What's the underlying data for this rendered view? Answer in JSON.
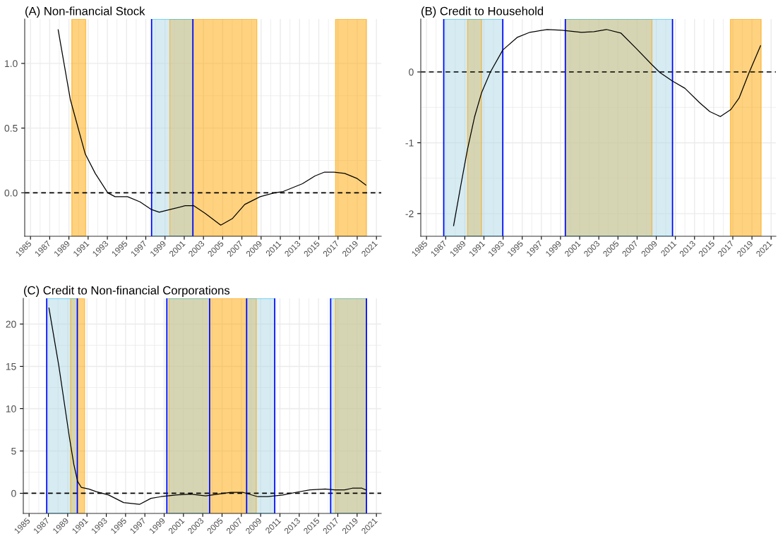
{
  "chart_data": [
    {
      "type": "line",
      "title": "(A) Non-financial Stock",
      "xlim": [
        1984.4,
        2021.5
      ],
      "ylim": [
        -0.336,
        1.343
      ],
      "xticks": [
        1985,
        1987,
        1989,
        1991,
        1993,
        1995,
        1997,
        1999,
        2001,
        2003,
        2005,
        2007,
        2009,
        2011,
        2013,
        2015,
        2017,
        2019,
        2021
      ],
      "yticks": [
        {
          "value": 0,
          "label": "0.0"
        },
        {
          "value": 0.5,
          "label": "0.5"
        },
        {
          "value": 1,
          "label": "1.0"
        }
      ],
      "grid": true,
      "line_style": "solid",
      "series": [
        {
          "color": "#000000",
          "x": [
            1987.88,
            1989.15,
            1990.7,
            1991.74,
            1993.04,
            1993.8,
            1995.1,
            1996.4,
            1997.6,
            1998.4,
            1999.5,
            2001.1,
            2002.0,
            2003.2,
            2004.8,
            2006.0,
            2007.3,
            2008.9,
            2010.4,
            2011.3,
            2013.3,
            2014.6,
            2015.6,
            2016.6,
            2017.7,
            2019.0,
            2019.9
          ],
          "values": [
            1.26,
            0.72,
            0.3,
            0.15,
            0.0,
            -0.03,
            -0.03,
            -0.07,
            -0.13,
            -0.15,
            -0.13,
            -0.1,
            -0.1,
            -0.16,
            -0.25,
            -0.2,
            -0.09,
            -0.03,
            0.0,
            0.01,
            0.07,
            0.13,
            0.16,
            0.16,
            0.15,
            0.11,
            0.06
          ]
        }
      ],
      "ref_lines": [
        {
          "axis": "y",
          "value": 0,
          "color": "#000000",
          "line_style": "dashed"
        },
        {
          "axis": "x",
          "value": 1997.6,
          "color": "#0000ff",
          "line_style": "solid"
        },
        {
          "axis": "x",
          "value": 2001.9,
          "color": "#0000ff",
          "line_style": "solid"
        }
      ],
      "bands": [
        {
          "axis": "x",
          "from": 1989.3,
          "to": 1990.75,
          "color": "#ffd280"
        },
        {
          "axis": "x",
          "from": 1999.5,
          "to": 2008.55,
          "color": "#ffd280"
        },
        {
          "axis": "x",
          "from": 2016.75,
          "to": 2019.95,
          "color": "#ffd280"
        },
        {
          "axis": "x",
          "from": 1997.6,
          "to": 2001.9,
          "color": "#d6ebf2"
        }
      ]
    },
    {
      "type": "line",
      "title": "(B) Credit to Household",
      "xlim": [
        1984.4,
        2021.5
      ],
      "ylim": [
        -2.32,
        0.747
      ],
      "xticks": [
        1985,
        1987,
        1989,
        1991,
        1993,
        1995,
        1997,
        1999,
        2001,
        2003,
        2005,
        2007,
        2009,
        2011,
        2013,
        2015,
        2017,
        2019,
        2021
      ],
      "yticks": [
        {
          "value": -2,
          "label": "-2"
        },
        {
          "value": -1,
          "label": "-1"
        },
        0
      ],
      "grid": true,
      "line_style": "solid",
      "series": [
        {
          "color": "#000000",
          "x": [
            1987.83,
            1988.6,
            1989.27,
            1990.01,
            1990.76,
            1991.68,
            1992.97,
            1994.5,
            1995.8,
            1997.6,
            1999.14,
            2001.2,
            2002.5,
            2003.8,
            2005.3,
            2006.85,
            2008.57,
            2009.4,
            2010.7,
            2011.99,
            2013.5,
            2014.6,
            2015.7,
            2016.8,
            2017.65,
            2018.7,
            2019.9
          ],
          "values": [
            -2.17,
            -1.59,
            -1.1,
            -0.64,
            -0.29,
            0,
            0.31,
            0.49,
            0.56,
            0.6,
            0.59,
            0.56,
            0.57,
            0.6,
            0.55,
            0.34,
            0.1,
            -0.01,
            -0.13,
            -0.23,
            -0.43,
            -0.56,
            -0.63,
            -0.53,
            -0.37,
            -0.01,
            0.37
          ]
        }
      ],
      "ref_lines": [
        {
          "axis": "y",
          "value": 0,
          "color": "#000000",
          "line_style": "dashed"
        },
        {
          "axis": "x",
          "value": 1986.8,
          "color": "#0000ff",
          "line_style": "solid"
        },
        {
          "axis": "x",
          "value": 1992.97,
          "color": "#0000ff",
          "line_style": "solid"
        },
        {
          "axis": "x",
          "value": 1999.5,
          "color": "#0000ff",
          "line_style": "solid"
        },
        {
          "axis": "x",
          "value": 2010.7,
          "color": "#0000ff",
          "line_style": "solid"
        }
      ],
      "bands": [
        {
          "axis": "x",
          "from": 1989.3,
          "to": 1990.75,
          "color": "#ffd280"
        },
        {
          "axis": "x",
          "from": 1999.5,
          "to": 2008.55,
          "color": "#ffd280"
        },
        {
          "axis": "x",
          "from": 2016.75,
          "to": 2019.95,
          "color": "#ffd280"
        },
        {
          "axis": "x",
          "from": 1986.8,
          "to": 1992.97,
          "color": "#d6ebf2"
        },
        {
          "axis": "x",
          "from": 1999.5,
          "to": 2010.7,
          "color": "#d6ebf2"
        }
      ]
    },
    {
      "type": "line",
      "title": "(C) Credit to Non-financial Corporations",
      "xlim": [
        1984.4,
        2021.5
      ],
      "ylim": [
        -2.38,
        23.04
      ],
      "xticks": [
        1985,
        1987,
        1989,
        1991,
        1993,
        1995,
        1997,
        1999,
        2001,
        2003,
        2005,
        2007,
        2009,
        2011,
        2013,
        2015,
        2017,
        2019,
        2021
      ],
      "yticks": [
        0,
        5,
        10,
        15,
        20
      ],
      "grid": true,
      "line_style": "solid",
      "series": [
        {
          "color": "#000000",
          "x": [
            1987.06,
            1988.09,
            1989.18,
            1989.64,
            1990.03,
            1990.41,
            1991.19,
            1991.96,
            1993.25,
            1994.8,
            1996.47,
            1997.63,
            1998.66,
            2000.2,
            2001.75,
            2003.3,
            2004.6,
            2005.9,
            2007.2,
            2008.7,
            2009.74,
            2011.3,
            2012.6,
            2014.1,
            2015.7,
            2016.7,
            2017.7,
            2018.5,
            2019.5,
            2019.9
          ],
          "values": [
            21.9,
            15.0,
            6.6,
            3.4,
            1.4,
            0.7,
            0.5,
            0.2,
            -0.2,
            -1.1,
            -1.3,
            -0.6,
            -0.4,
            -0.2,
            -0.1,
            -0.3,
            -0.1,
            0.1,
            0.1,
            -0.4,
            -0.4,
            -0.2,
            0.1,
            0.4,
            0.5,
            0.4,
            0.4,
            0.6,
            0.6,
            0.4
          ]
        }
      ],
      "ref_lines": [
        {
          "axis": "y",
          "value": 0,
          "color": "#000000",
          "line_style": "dashed"
        },
        {
          "axis": "x",
          "value": 1986.83,
          "color": "#0000ff",
          "line_style": "solid"
        },
        {
          "axis": "x",
          "value": 1990.0,
          "color": "#0000ff",
          "line_style": "solid"
        },
        {
          "axis": "x",
          "value": 1999.28,
          "color": "#0000ff",
          "line_style": "solid"
        },
        {
          "axis": "x",
          "value": 2003.71,
          "color": "#0000ff",
          "line_style": "solid"
        },
        {
          "axis": "x",
          "value": 2007.55,
          "color": "#0000ff",
          "line_style": "solid"
        },
        {
          "axis": "x",
          "value": 2010.46,
          "color": "#0000ff",
          "line_style": "solid"
        },
        {
          "axis": "x",
          "value": 2016.26,
          "color": "#0000ff",
          "line_style": "solid"
        },
        {
          "axis": "x",
          "value": 2019.97,
          "color": "#0000ff",
          "line_style": "solid"
        }
      ],
      "bands": [
        {
          "axis": "x",
          "from": 1989.3,
          "to": 1990.75,
          "color": "#ffd280"
        },
        {
          "axis": "x",
          "from": 1999.5,
          "to": 2008.55,
          "color": "#ffd280"
        },
        {
          "axis": "x",
          "from": 2016.75,
          "to": 2019.95,
          "color": "#ffd280"
        },
        {
          "axis": "x",
          "from": 1986.83,
          "to": 1990.0,
          "color": "#d6ebf2"
        },
        {
          "axis": "x",
          "from": 1999.28,
          "to": 2003.71,
          "color": "#d6ebf2"
        },
        {
          "axis": "x",
          "from": 2007.55,
          "to": 2010.46,
          "color": "#d6ebf2"
        },
        {
          "axis": "x",
          "from": 2016.26,
          "to": 2019.97,
          "color": "#d6ebf2"
        }
      ]
    }
  ]
}
